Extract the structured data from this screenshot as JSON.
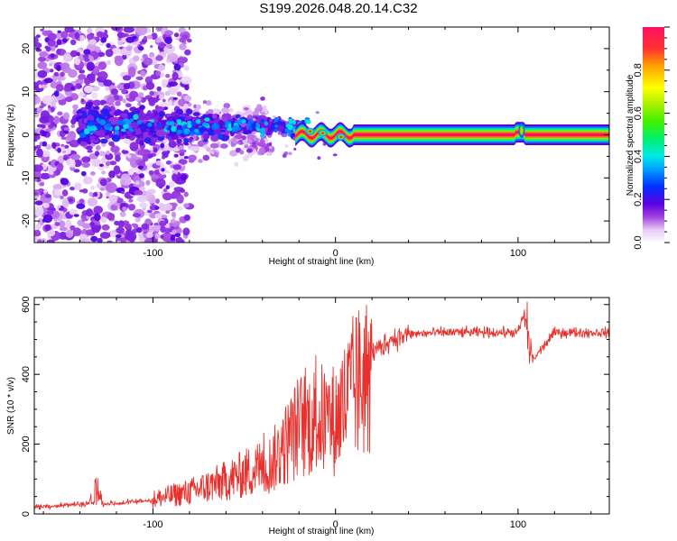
{
  "title": "S199.2026.048.20.14.C32",
  "chart_data": [
    {
      "type": "heatmap",
      "xlabel": "Height of straight line (km)",
      "ylabel": "Frequency (Hz)",
      "xlim": [
        -165,
        150
      ],
      "ylim": [
        -25,
        25
      ],
      "x_ticks": [
        -100,
        0,
        100
      ],
      "y_ticks": [
        -20,
        -10,
        0,
        10,
        20
      ],
      "colorbar": {
        "label": "Normalized spectral amplitude",
        "range": [
          0,
          1
        ],
        "ticks": [
          0.0,
          0.2,
          0.4,
          0.6,
          0.8
        ]
      },
      "description_points": [
        {
          "x": -20,
          "y": 0.5,
          "z": 0.8
        },
        {
          "x": -5,
          "y": 0,
          "z": 0.9
        },
        {
          "x": 20,
          "y": 0,
          "z": 1.0
        },
        {
          "x": 60,
          "y": 0,
          "z": 1.0
        },
        {
          "x": 100,
          "y": 0.5,
          "z": 0.95
        },
        {
          "x": 145,
          "y": 0,
          "z": 1.0
        }
      ]
    },
    {
      "type": "line",
      "xlabel": "Height of straight line (km)",
      "ylabel": "SNR (10 * v/v)",
      "xlim": [
        -165,
        150
      ],
      "ylim": [
        0,
        620
      ],
      "x_ticks": [
        -100,
        0,
        100
      ],
      "y_ticks": [
        0,
        200,
        400,
        600
      ],
      "series": [
        {
          "name": "SNR",
          "color": "#e8302c",
          "x": [
            -165,
            -150,
            -135,
            -132,
            -128,
            -120,
            -100,
            -80,
            -60,
            -50,
            -40,
            -30,
            -20,
            -10,
            0,
            10,
            20,
            30,
            40,
            60,
            80,
            100,
            105,
            108,
            120,
            150
          ],
          "y": [
            20,
            25,
            30,
            110,
            30,
            30,
            40,
            60,
            90,
            110,
            130,
            200,
            280,
            300,
            300,
            400,
            460,
            500,
            515,
            520,
            520,
            520,
            600,
            440,
            520,
            520
          ]
        }
      ]
    }
  ]
}
